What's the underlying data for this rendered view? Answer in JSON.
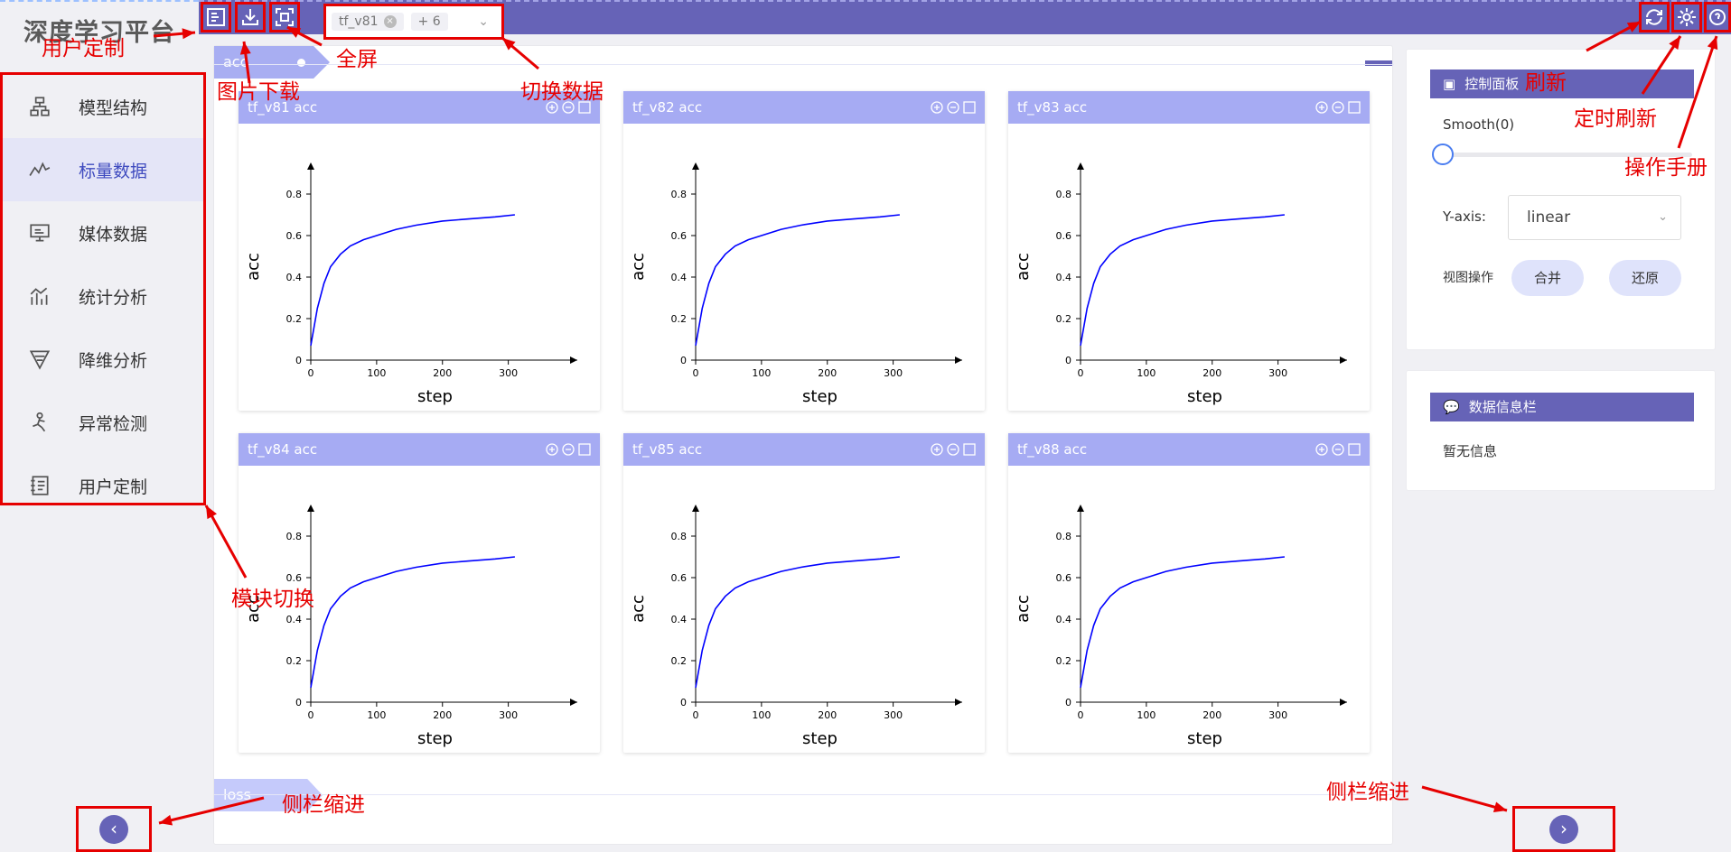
{
  "app": {
    "title": "深度学习平台"
  },
  "topbar": {
    "selected_run": "tf_v81",
    "extra_count": "+ 6"
  },
  "sidebar": {
    "items": [
      {
        "label": "模型结构",
        "icon": "model-structure-icon"
      },
      {
        "label": "标量数据",
        "icon": "scalar-icon",
        "active": true
      },
      {
        "label": "媒体数据",
        "icon": "media-icon"
      },
      {
        "label": "统计分析",
        "icon": "stats-icon"
      },
      {
        "label": "降维分析",
        "icon": "dim-reduction-icon"
      },
      {
        "label": "异常检测",
        "icon": "anomaly-icon"
      },
      {
        "label": "用户定制",
        "icon": "custom-icon"
      }
    ]
  },
  "sections": {
    "acc": "acc",
    "loss": "loss"
  },
  "charts": [
    {
      "title": "tf_v81 acc"
    },
    {
      "title": "tf_v82 acc"
    },
    {
      "title": "tf_v83 acc"
    },
    {
      "title": "tf_v84 acc"
    },
    {
      "title": "tf_v85 acc"
    },
    {
      "title": "tf_v88 acc"
    }
  ],
  "chart_common": {
    "xlabel": "step",
    "ylabel": "acc",
    "xticks": [
      "0",
      "100",
      "200",
      "300"
    ],
    "yticks": [
      "0",
      "0.2",
      "0.4",
      "0.6",
      "0.8"
    ]
  },
  "chart_data": [
    {
      "type": "line",
      "title": "tf_v81 acc",
      "xlabel": "step",
      "ylabel": "acc",
      "xlim": [
        0,
        400
      ],
      "ylim": [
        0,
        0.9
      ],
      "series": [
        {
          "x": [
            0,
            10,
            20,
            30,
            45,
            60,
            80,
            100,
            130,
            160,
            200,
            240,
            280,
            310
          ],
          "y": [
            0.07,
            0.25,
            0.37,
            0.45,
            0.51,
            0.55,
            0.58,
            0.6,
            0.63,
            0.65,
            0.67,
            0.68,
            0.69,
            0.7
          ],
          "color": "#0000ff"
        }
      ]
    },
    {
      "type": "line",
      "title": "tf_v82 acc",
      "xlabel": "step",
      "ylabel": "acc",
      "xlim": [
        0,
        400
      ],
      "ylim": [
        0,
        0.9
      ],
      "series": [
        {
          "x": [
            0,
            10,
            20,
            30,
            45,
            60,
            80,
            100,
            130,
            160,
            200,
            240,
            280,
            310
          ],
          "y": [
            0.07,
            0.25,
            0.37,
            0.45,
            0.51,
            0.55,
            0.58,
            0.6,
            0.63,
            0.65,
            0.67,
            0.68,
            0.69,
            0.7
          ],
          "color": "#0000ff"
        }
      ]
    },
    {
      "type": "line",
      "title": "tf_v83 acc",
      "xlabel": "step",
      "ylabel": "acc",
      "xlim": [
        0,
        400
      ],
      "ylim": [
        0,
        0.9
      ],
      "series": [
        {
          "x": [
            0,
            10,
            20,
            30,
            45,
            60,
            80,
            100,
            130,
            160,
            200,
            240,
            280,
            310
          ],
          "y": [
            0.07,
            0.25,
            0.37,
            0.45,
            0.51,
            0.55,
            0.58,
            0.6,
            0.63,
            0.65,
            0.67,
            0.68,
            0.69,
            0.7
          ],
          "color": "#0000ff"
        }
      ]
    },
    {
      "type": "line",
      "title": "tf_v84 acc",
      "xlabel": "step",
      "ylabel": "acc",
      "xlim": [
        0,
        400
      ],
      "ylim": [
        0,
        0.9
      ],
      "series": [
        {
          "x": [
            0,
            10,
            20,
            30,
            45,
            60,
            80,
            100,
            130,
            160,
            200,
            240,
            280,
            310
          ],
          "y": [
            0.07,
            0.25,
            0.37,
            0.45,
            0.51,
            0.55,
            0.58,
            0.6,
            0.63,
            0.65,
            0.67,
            0.68,
            0.69,
            0.7
          ],
          "color": "#0000ff"
        }
      ]
    },
    {
      "type": "line",
      "title": "tf_v85 acc",
      "xlabel": "step",
      "ylabel": "acc",
      "xlim": [
        0,
        400
      ],
      "ylim": [
        0,
        0.9
      ],
      "series": [
        {
          "x": [
            0,
            10,
            20,
            30,
            45,
            60,
            80,
            100,
            130,
            160,
            200,
            240,
            280,
            310
          ],
          "y": [
            0.07,
            0.25,
            0.37,
            0.45,
            0.51,
            0.55,
            0.58,
            0.6,
            0.63,
            0.65,
            0.67,
            0.68,
            0.69,
            0.7
          ],
          "color": "#0000ff"
        }
      ]
    },
    {
      "type": "line",
      "title": "tf_v88 acc",
      "xlabel": "step",
      "ylabel": "acc",
      "xlim": [
        0,
        400
      ],
      "ylim": [
        0,
        0.9
      ],
      "series": [
        {
          "x": [
            0,
            10,
            20,
            30,
            45,
            60,
            80,
            100,
            130,
            160,
            200,
            240,
            280,
            310
          ],
          "y": [
            0.07,
            0.25,
            0.37,
            0.45,
            0.51,
            0.55,
            0.58,
            0.6,
            0.63,
            0.65,
            0.67,
            0.68,
            0.69,
            0.7
          ],
          "color": "#0000ff"
        }
      ]
    }
  ],
  "control_panel": {
    "title": "控制面板",
    "smooth_label": "Smooth(0)",
    "smooth_value": 0,
    "yaxis_label": "Y-axis:",
    "yaxis_value": "linear",
    "view_label": "视图操作",
    "merge_label": "合并",
    "restore_label": "还原"
  },
  "info_panel": {
    "title": "数据信息栏",
    "empty_text": "暂无信息"
  },
  "annotations": {
    "custom": "用户定制",
    "download": "图片下载",
    "fullscreen": "全屏",
    "switch_data": "切换数据",
    "refresh": "刷新",
    "timed_refresh": "定时刷新",
    "manual": "操作手册",
    "module_switch": "模块切换",
    "collapse_left": "侧栏缩进",
    "collapse_right": "侧栏缩进"
  },
  "colors": {
    "accent": "#6663b7",
    "card_header": "#a6abf3",
    "annotation": "#e60000",
    "line": "#0000ff"
  }
}
